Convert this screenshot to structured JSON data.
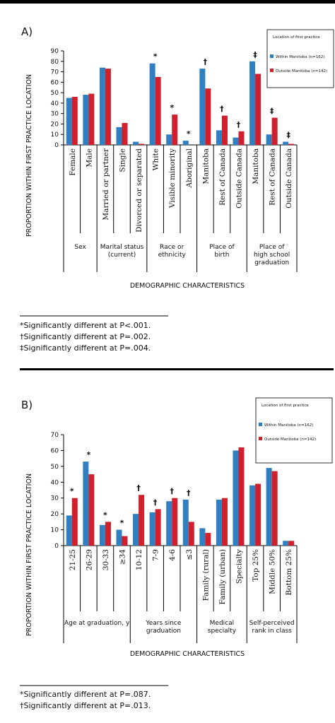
{
  "chart_data": [
    {
      "type": "bar",
      "panel": "A)",
      "ylabel": "PROPORTION WITHIN FIRST PRACTICE LOCATION",
      "xlabel": "DEMOGRAPHIC CHARACTERISTICS",
      "legend_title": "Location of first practice",
      "ylim": [
        0,
        90
      ],
      "yticks": [
        0,
        10,
        20,
        30,
        40,
        50,
        60,
        70,
        80,
        90
      ],
      "groups": [
        {
          "label": [
            "Sex"
          ],
          "categories": [
            "Female",
            "Male"
          ]
        },
        {
          "label": [
            "Marital status",
            "(current)"
          ],
          "categories": [
            "Married or partner",
            "Single",
            "Divorced or separated"
          ]
        },
        {
          "label": [
            "Race or",
            "ethnicity"
          ],
          "categories": [
            "White",
            "Visible minority",
            "Aboriginal"
          ]
        },
        {
          "label": [
            "Place of",
            "birth"
          ],
          "categories": [
            "Manitoba",
            "Rest of Canada",
            "Outside Canada"
          ]
        },
        {
          "label": [
            "Place of",
            "high school",
            "graduation"
          ],
          "categories": [
            "Manitoba",
            "Rest of Canada",
            "Outside Canada"
          ]
        }
      ],
      "series": [
        {
          "name": "Within Manitoba (n=162)",
          "color": "#2f7fc1",
          "values": [
            45,
            48,
            74,
            17,
            3,
            78,
            10,
            4,
            73,
            14,
            7,
            80,
            10,
            3
          ]
        },
        {
          "name": "Outside Manitoba (n=142)",
          "color": "#d0202e",
          "values": [
            46,
            49,
            73,
            21,
            1,
            65,
            29,
            0,
            54,
            28,
            13,
            68,
            26,
            1
          ]
        }
      ],
      "markers": [
        null,
        null,
        null,
        null,
        null,
        "*",
        "*",
        "*",
        "†",
        "†",
        "†",
        "‡",
        "‡",
        "‡"
      ],
      "footnotes": [
        "*Significantly different at P<.001.",
        "†Significantly different at P=.002.",
        "‡Significantly different at P=.004."
      ]
    },
    {
      "type": "bar",
      "panel": "B)",
      "ylabel": "PROPORTION WITHIN FIRST PRACTICE LOCATION",
      "xlabel": "DEMOGRAPHIC CHARACTERISTICS",
      "legend_title": "Location of first practice",
      "ylim": [
        0,
        70
      ],
      "yticks": [
        0,
        10,
        20,
        30,
        40,
        50,
        60,
        70
      ],
      "groups": [
        {
          "label": [
            "Age at graduation, y"
          ],
          "categories": [
            "21-25",
            "26-29",
            "30-33",
            "≥34"
          ]
        },
        {
          "label": [
            "Years since",
            "graduation"
          ],
          "categories": [
            "10-12",
            "7-9",
            "4-6",
            "≤3"
          ]
        },
        {
          "label": [
            "Medical",
            "specialty"
          ],
          "categories": [
            "Family (rural)",
            "Family (urban)",
            "Specialty"
          ]
        },
        {
          "label": [
            "Self-perceived",
            "rank in class"
          ],
          "categories": [
            "Top 25%",
            "Middle 50%",
            "Bottom 25%"
          ]
        }
      ],
      "series": [
        {
          "name": "Within Manitoba (n=162)",
          "color": "#2f7fc1",
          "values": [
            19,
            53,
            13,
            10,
            20,
            21,
            28,
            29,
            11,
            29,
            60,
            38,
            49,
            3
          ]
        },
        {
          "name": "Outside Manitoba (n=142)",
          "color": "#d0202e",
          "values": [
            30,
            45,
            15,
            6,
            32,
            23,
            30,
            15,
            8,
            30,
            62,
            39,
            47,
            3
          ]
        }
      ],
      "markers": [
        "*",
        "*",
        "*",
        "*",
        "†",
        "†",
        "†",
        "†",
        null,
        null,
        null,
        null,
        null,
        null
      ],
      "footnotes": [
        "*Significantly different at P=.087.",
        "†Significantly different at P=.013."
      ]
    }
  ]
}
